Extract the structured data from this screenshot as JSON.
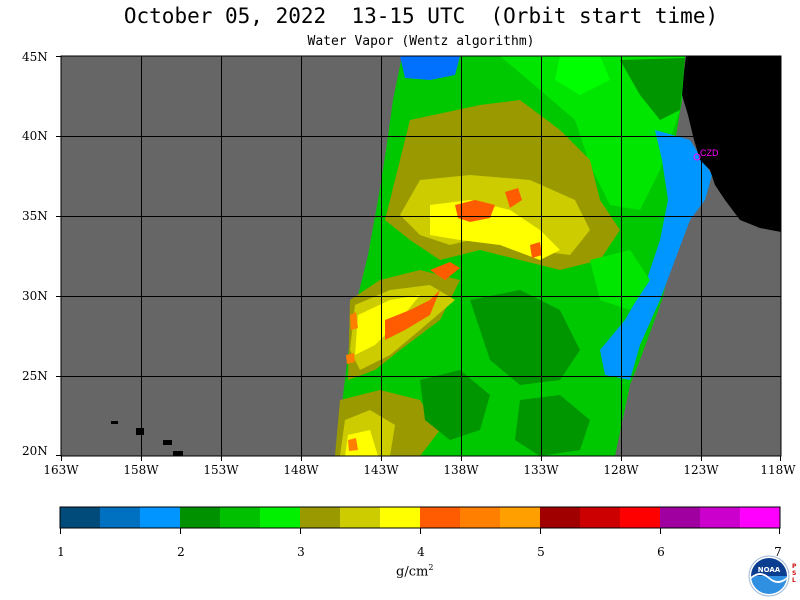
{
  "title": "October 05, 2022  13-15 UTC  (Orbit start time)",
  "subtitle": "Water Vapor (Wentz algorithm)",
  "lat_labels": [
    "45N",
    "40N",
    "35N",
    "30N",
    "25N",
    "20N"
  ],
  "lon_labels": [
    "163W",
    "158W",
    "153W",
    "148W",
    "143W",
    "138W",
    "133W",
    "128W",
    "123W",
    "118W"
  ],
  "map_extent": {
    "lon": [
      -163,
      -118
    ],
    "lat": [
      20,
      45
    ]
  },
  "station": {
    "label": "CZD",
    "lon": -123.1,
    "lat": 38.6,
    "color": "#ff00ff"
  },
  "colors": {
    "no_data": "#666666",
    "land": "#000000",
    "grid": "#000000"
  },
  "colorbar": {
    "segments": [
      "#004b7a",
      "#0070c0",
      "#0095ff",
      "#009100",
      "#00c000",
      "#00f000",
      "#9a9a00",
      "#cccc00",
      "#ffff00",
      "#ff5b00",
      "#ff7f00",
      "#ffa000",
      "#a00000",
      "#cc0000",
      "#ff0000",
      "#a000a0",
      "#cc00cc",
      "#ff00ff"
    ],
    "ticks": [
      "1",
      "2",
      "3",
      "4",
      "5",
      "6",
      "7"
    ],
    "range": [
      1,
      7
    ]
  },
  "units": "g/cm",
  "units_sup": "2",
  "logo": {
    "text": "NOAA",
    "side_text": "PSL"
  }
}
